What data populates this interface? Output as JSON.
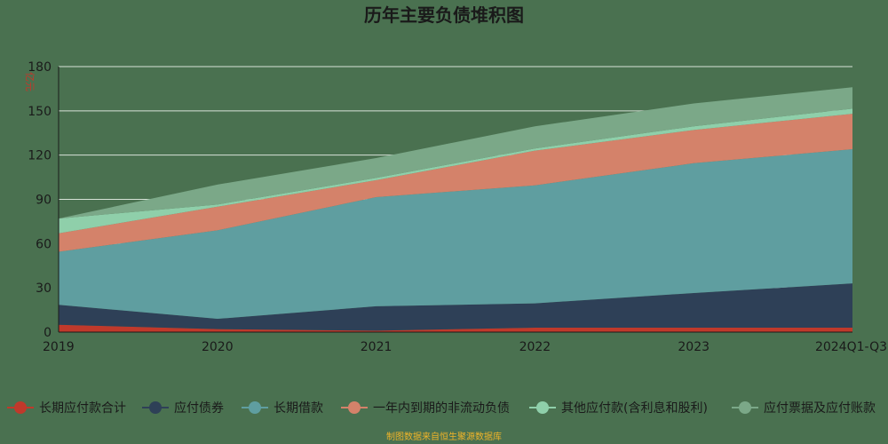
{
  "chart_data": {
    "type": "area",
    "stacked": true,
    "title": "历年主要负债堆积图",
    "unit_label": "亿元",
    "categories": [
      "2019",
      "2020",
      "2021",
      "2022",
      "2023",
      "2024Q1-Q3"
    ],
    "ylim": [
      0,
      180
    ],
    "yticks": [
      0,
      30,
      60,
      90,
      120,
      150,
      180
    ],
    "grid": true,
    "legend_position": "bottom",
    "series": [
      {
        "name": "长期应付款合计",
        "color": "#c0392b",
        "values": [
          5,
          2,
          1,
          3,
          3,
          3
        ]
      },
      {
        "name": "应付债券",
        "color": "#2e4057",
        "values": [
          13.5,
          7,
          16.5,
          16.5,
          23.5,
          30
        ]
      },
      {
        "name": "长期借款",
        "color": "#5f9ea0",
        "values": [
          36,
          60,
          74,
          80,
          88,
          91
        ]
      },
      {
        "name": "一年内到期的非流动负债",
        "color": "#d4826a",
        "values": [
          12.5,
          16,
          11.5,
          23.5,
          22.5,
          24
        ]
      },
      {
        "name": "其他应付款(含利息和股利)",
        "color": "#8fcfaa",
        "values": [
          10,
          1.5,
          1.5,
          1.5,
          2.5,
          3.5
        ]
      },
      {
        "name": "应付票据及应付账款",
        "color": "#7ba888",
        "values": [
          0,
          13.5,
          13.5,
          15,
          15.5,
          14.5
        ]
      }
    ]
  },
  "source_note": "制图数据来自恒生聚源数据库"
}
